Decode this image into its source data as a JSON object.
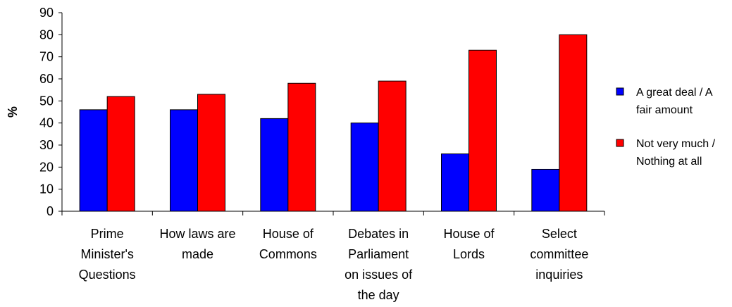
{
  "chart_data": {
    "type": "bar",
    "categories": [
      [
        "Prime",
        "Minister's",
        "Questions"
      ],
      [
        "How laws are",
        "made"
      ],
      [
        "House of",
        "Commons"
      ],
      [
        "Debates in",
        "Parliament",
        "on issues of",
        "the day"
      ],
      [
        "House of",
        "Lords"
      ],
      [
        "Select",
        "committee",
        "inquiries"
      ]
    ],
    "series": [
      {
        "name": "A great deal / A fair amount",
        "legend_lines": [
          "A great deal / A",
          "fair amount"
        ],
        "color": "#0000ff",
        "values": [
          46,
          46,
          42,
          40,
          26,
          19
        ]
      },
      {
        "name": "Not very much / Nothing at all",
        "legend_lines": [
          "Not very much /",
          "Nothing at all"
        ],
        "color": "#ff0000",
        "values": [
          52,
          53,
          58,
          59,
          73,
          80
        ]
      }
    ],
    "ylabel": "%",
    "ylim": [
      0,
      90
    ],
    "yticks": [
      "0",
      "10",
      "20",
      "30",
      "40",
      "50",
      "60",
      "70",
      "80",
      "90"
    ],
    "grid": false,
    "legend_position": "right"
  }
}
